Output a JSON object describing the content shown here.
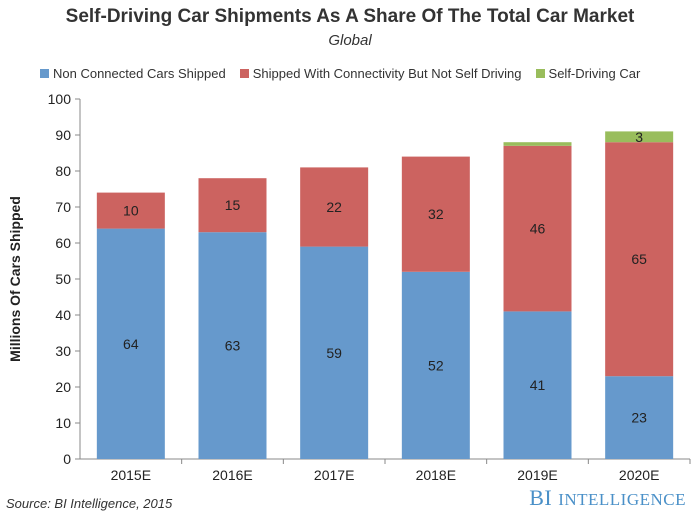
{
  "title": "Self-Driving Car Shipments As A Share Of The Total Car Market",
  "subtitle": "Global",
  "source": "Source: BI Intelligence, 2015",
  "brand": {
    "first": "BI",
    "second": "Intelligence"
  },
  "colors": {
    "non_connected": "#6699cc",
    "connected": "#cc6360",
    "self_driving": "#99bd5c"
  },
  "chart_data": {
    "type": "bar",
    "stacked": true,
    "categories": [
      "2015E",
      "2016E",
      "2017E",
      "2018E",
      "2019E",
      "2020E"
    ],
    "series": [
      {
        "name": "Non Connected Cars Shipped",
        "values": [
          64,
          63,
          59,
          52,
          41,
          23
        ],
        "labels": [
          "64",
          "63",
          "59",
          "52",
          "41",
          "23"
        ]
      },
      {
        "name": "Shipped With Connectivity But Not Self Driving",
        "values": [
          10,
          15,
          22,
          32,
          46,
          65
        ],
        "labels": [
          "10",
          "15",
          "22",
          "32",
          "46",
          "65"
        ]
      },
      {
        "name": "Self-Driving Car",
        "values": [
          0,
          0,
          0,
          0,
          1,
          3
        ],
        "labels": [
          "",
          "",
          "",
          "",
          "",
          "3"
        ]
      }
    ],
    "ylabel": "Millions Of Cars Shipped",
    "xlabel": "",
    "ylim": [
      0,
      100
    ],
    "yticks": [
      "0",
      "10",
      "20",
      "30",
      "40",
      "50",
      "60",
      "70",
      "80",
      "90",
      "100"
    ],
    "legend": "top",
    "grid": false
  }
}
